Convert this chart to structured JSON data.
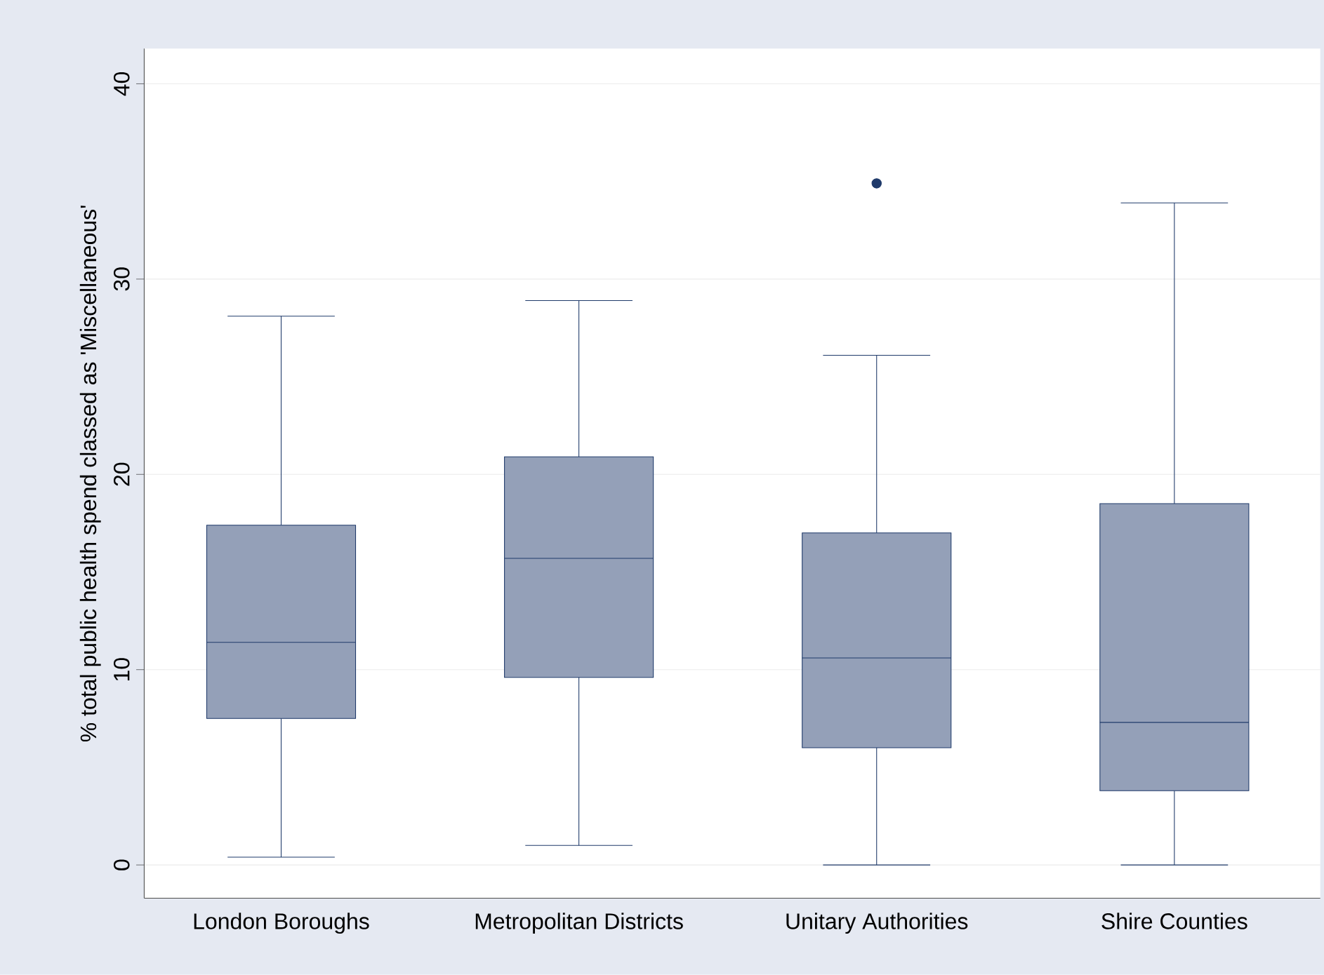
{
  "chart_data": {
    "type": "box",
    "ylabel": "% total public health spend classed as 'Miscellaneous'",
    "categories": [
      "London Boroughs",
      "Metropolitan Districts",
      "Unitary Authorities",
      "Shire Counties"
    ],
    "boxes": [
      {
        "low": 0.4,
        "q1": 7.5,
        "median": 11.4,
        "q3": 17.4,
        "high": 28.1
      },
      {
        "low": 1.0,
        "q1": 9.6,
        "median": 15.7,
        "q3": 20.9,
        "high": 28.9
      },
      {
        "low": 0,
        "q1": 6.0,
        "median": 10.6,
        "q3": 17.0,
        "high": 26.1,
        "outliers": [
          34.9
        ]
      },
      {
        "low": 0,
        "q1": 3.8,
        "median": 7.3,
        "q3": 18.5,
        "high": 33.9
      }
    ],
    "color": "#94a0b8",
    "ylim": [
      -1.7,
      41.8
    ],
    "yticks": [
      0,
      10,
      20,
      30,
      40
    ],
    "grid": "y",
    "marker": "circle"
  }
}
